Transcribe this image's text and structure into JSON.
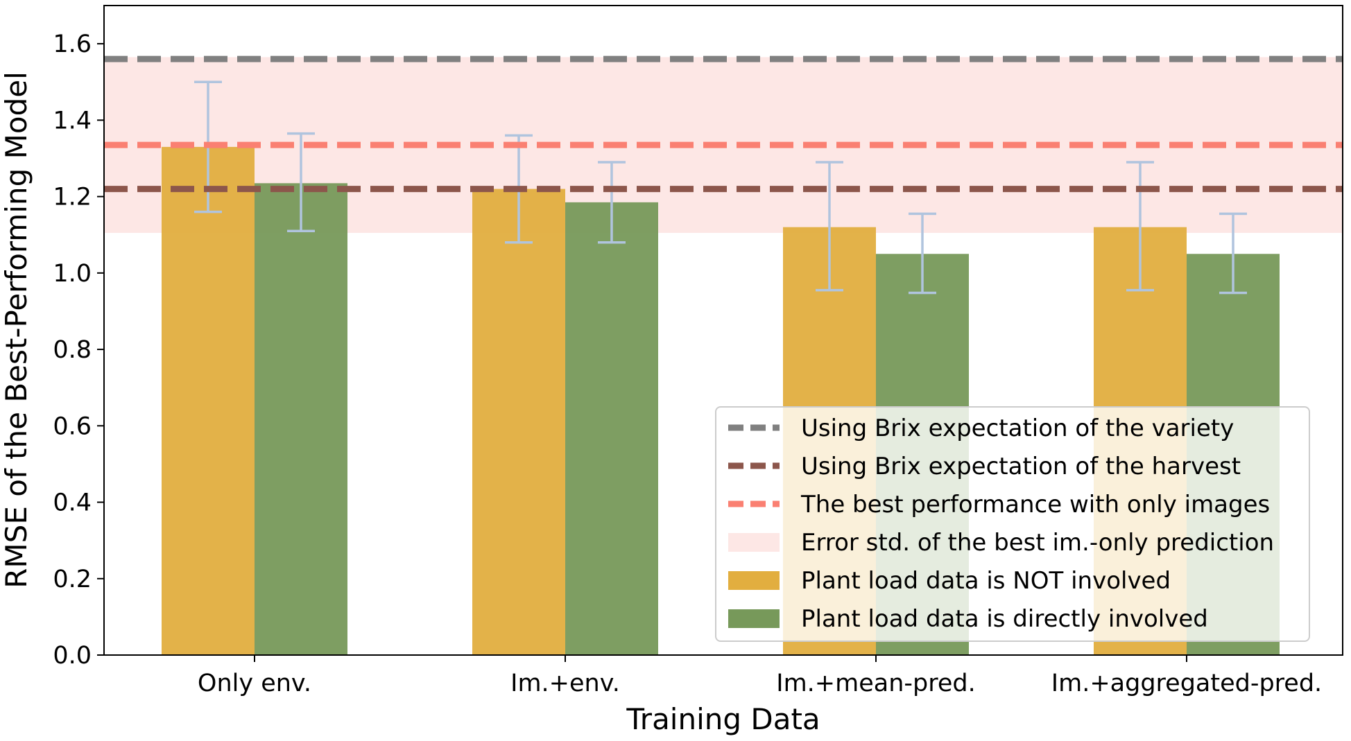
{
  "chart_data": {
    "type": "bar",
    "title": "",
    "xlabel": "Training Data",
    "ylabel": "RMSE of the Best-Performing Model",
    "ylim": [
      0.0,
      1.7
    ],
    "yticks": [
      0.0,
      0.2,
      0.4,
      0.6,
      0.8,
      1.0,
      1.2,
      1.4,
      1.6
    ],
    "ytick_labels": [
      "0.0",
      "0.2",
      "0.4",
      "0.6",
      "0.8",
      "1.0",
      "1.2",
      "1.4",
      "1.6"
    ],
    "categories": [
      "Only env.",
      "Im.+env.",
      "Im.+mean-pred.",
      "Im.+aggregated-pred."
    ],
    "series": [
      {
        "name": "Plant load data is NOT involved",
        "color": "#e2ae3f",
        "values": [
          1.33,
          1.22,
          1.12,
          1.12
        ],
        "err_low": [
          1.16,
          1.08,
          0.955,
          0.955
        ],
        "err_high": [
          1.5,
          1.36,
          1.29,
          1.29
        ]
      },
      {
        "name": "Plant load data is directly involved",
        "color": "#77995a",
        "values": [
          1.235,
          1.185,
          1.05,
          1.05
        ],
        "err_low": [
          1.11,
          1.08,
          0.948,
          0.948
        ],
        "err_high": [
          1.365,
          1.29,
          1.155,
          1.155
        ]
      }
    ],
    "error_bar_color": "#b0c4de",
    "reference_lines": [
      {
        "name": "Using Brix expectation of the variety",
        "value": 1.56,
        "color": "#808080",
        "style": "dashed"
      },
      {
        "name": "Using Brix expectation of the harvest",
        "value": 1.22,
        "color": "#8c564b",
        "style": "dashed"
      },
      {
        "name": "The best performance with only images",
        "value": 1.335,
        "color": "#fa8072",
        "style": "dashed"
      }
    ],
    "band": {
      "name": "Error std. of the best im.-only prediction",
      "low": 1.105,
      "high": 1.565,
      "color": "#fde7e5"
    },
    "legend": {
      "location": "lower-right",
      "entries": [
        "Using Brix expectation of the variety",
        "Using Brix expectation of the harvest",
        "The best performance with only images",
        "Error std. of the best im.-only prediction",
        "Plant load data is NOT involved",
        "Plant load data is directly involved"
      ]
    },
    "grid": false
  }
}
